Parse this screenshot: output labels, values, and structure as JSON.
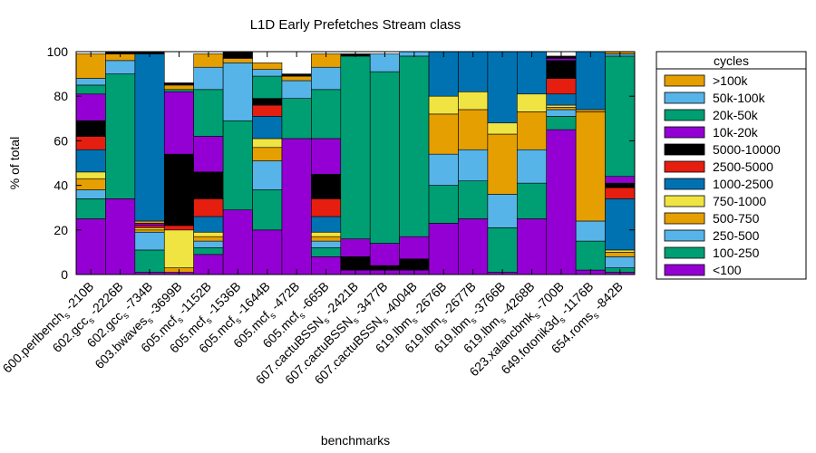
{
  "chart_data": {
    "type": "bar",
    "stacked": true,
    "title": "L1D Early Prefetches Stream class",
    "xlabel": "benchmarks",
    "ylabel": "% of total",
    "ylim": [
      0,
      100
    ],
    "yticks": [
      "0",
      "20",
      "40",
      "60",
      "80",
      "100"
    ],
    "legend_title": "cycles",
    "legend_position": "right",
    "categories": [
      {
        "base": "600.perlbench",
        "sub": "s",
        "tail": " -210B"
      },
      {
        "base": "602.gcc",
        "sub": "s",
        "tail": " -2226B"
      },
      {
        "base": "602.gcc",
        "sub": "s",
        "tail": " -734B"
      },
      {
        "base": "603.bwaves",
        "sub": "s",
        "tail": " -3699B"
      },
      {
        "base": "605.mcf",
        "sub": "s",
        "tail": " -1152B"
      },
      {
        "base": "605.mcf",
        "sub": "s",
        "tail": " -1536B"
      },
      {
        "base": "605.mcf",
        "sub": "s",
        "tail": " -1644B"
      },
      {
        "base": "605.mcf",
        "sub": "s",
        "tail": " -472B"
      },
      {
        "base": "605.mcf",
        "sub": "s",
        "tail": " -665B"
      },
      {
        "base": "607.cactuBSSN",
        "sub": "s",
        "tail": " -2421B"
      },
      {
        "base": "607.cactuBSSN",
        "sub": "s",
        "tail": " -3477B"
      },
      {
        "base": "607.cactuBSSN",
        "sub": "s",
        "tail": " -4004B"
      },
      {
        "base": "619.lbm",
        "sub": "s",
        "tail": " -2676B"
      },
      {
        "base": "619.lbm",
        "sub": "s",
        "tail": " -2677B"
      },
      {
        "base": "619.lbm",
        "sub": "s",
        "tail": " -3766B"
      },
      {
        "base": "619.lbm",
        "sub": "s",
        "tail": " -4268B"
      },
      {
        "base": "623.xalancbmk",
        "sub": "s",
        "tail": " -700B"
      },
      {
        "base": "649.fotonik3d",
        "sub": "s",
        "tail": " -1176B"
      },
      {
        "base": "654.roms",
        "sub": "s",
        "tail": " -842B"
      }
    ],
    "series": [
      {
        "name": "<100",
        "color": "#9400d3",
        "values": [
          25,
          34,
          1,
          1,
          9,
          29,
          20,
          61,
          8,
          2,
          2,
          2,
          23,
          25,
          1,
          25,
          65,
          2,
          1
        ]
      },
      {
        "name": "100-250",
        "color": "#009e73",
        "values": [
          9,
          0,
          10,
          0,
          3,
          0,
          18,
          0,
          4,
          0,
          0,
          0,
          17,
          17,
          20,
          16,
          6,
          13,
          2
        ]
      },
      {
        "name": "250-500",
        "color": "#56b4e9",
        "values": [
          4,
          0,
          8,
          0,
          3,
          0,
          13,
          0,
          3,
          0,
          0,
          0,
          14,
          14,
          15,
          15,
          3,
          9,
          5
        ]
      },
      {
        "name": "500-750",
        "color": "#e69f00",
        "values": [
          5,
          0,
          1,
          2,
          2,
          0,
          6,
          0,
          2,
          0,
          0,
          0,
          18,
          18,
          27,
          17,
          1,
          49,
          2
        ]
      },
      {
        "name": "750-1000",
        "color": "#f0e442",
        "values": [
          3,
          0,
          1,
          17,
          2,
          0,
          4,
          0,
          2,
          0,
          0,
          0,
          8,
          8,
          5,
          8,
          1,
          0,
          1
        ]
      },
      {
        "name": "1000-2500",
        "color": "#0072b2",
        "values": [
          10,
          0,
          0,
          0,
          7,
          0,
          10,
          0,
          7,
          0,
          0,
          0,
          0,
          0,
          0,
          0,
          5,
          0,
          23
        ]
      },
      {
        "name": "2500-5000",
        "color": "#e51e10",
        "values": [
          6,
          0,
          1,
          2,
          8,
          0,
          5,
          0,
          8,
          0,
          0,
          0,
          0,
          0,
          0,
          0,
          7,
          0,
          5
        ]
      },
      {
        "name": "5000-10000",
        "color": "#000000",
        "values": [
          7,
          0,
          0,
          32,
          12,
          0,
          3,
          0,
          11,
          6,
          2,
          5,
          0,
          0,
          0,
          0,
          8,
          0,
          2
        ]
      },
      {
        "name": "10k-20k",
        "color": "#9400d3",
        "values": [
          12,
          0,
          1,
          28,
          16,
          0,
          0,
          0,
          16,
          8,
          10,
          10,
          0,
          0,
          0,
          0,
          1,
          0,
          3
        ]
      },
      {
        "name": "20k-50k",
        "color": "#009e73",
        "values": [
          4,
          56,
          0,
          1,
          21,
          40,
          10,
          18,
          22,
          82,
          77,
          81,
          0,
          0,
          0,
          0,
          0,
          0,
          54
        ]
      },
      {
        "name": "50k-100k",
        "color": "#56b4e9",
        "values": [
          3,
          6,
          0,
          0,
          10,
          26,
          3,
          8,
          10,
          0,
          8,
          2,
          0,
          0,
          0,
          0,
          0,
          0,
          1
        ]
      },
      {
        "name": ">100k",
        "color": "#e69f00",
        "values": [
          11,
          3,
          1,
          2,
          6,
          2,
          3,
          2,
          6,
          0,
          0,
          0,
          0,
          0,
          0,
          0,
          0,
          1,
          0
        ]
      },
      {
        "name": "1000-2500",
        "color": "#0072b2",
        "values": [
          0,
          0,
          75,
          0,
          0,
          0,
          0,
          0,
          0,
          0,
          0,
          0,
          20,
          18,
          32,
          19,
          0,
          26,
          0
        ]
      },
      {
        "name": "5000-10000",
        "color": "#000000",
        "values": [
          0,
          1,
          1,
          1,
          0,
          3,
          0,
          1,
          0,
          1,
          0,
          0,
          0,
          0,
          0,
          0,
          1,
          0,
          0
        ]
      },
      {
        "name": "500-750",
        "color": "#e69f00",
        "values": [
          0,
          0,
          0,
          0,
          0,
          0,
          0,
          0,
          0,
          0,
          0,
          0,
          0,
          0,
          0,
          0,
          0,
          0,
          1
        ]
      }
    ],
    "legend": [
      {
        "label": ">100k",
        "color": "#e69f00"
      },
      {
        "label": "50k-100k",
        "color": "#56b4e9"
      },
      {
        "label": "20k-50k",
        "color": "#009e73"
      },
      {
        "label": "10k-20k",
        "color": "#9400d3"
      },
      {
        "label": "5000-10000",
        "color": "#000000"
      },
      {
        "label": "2500-5000",
        "color": "#e51e10"
      },
      {
        "label": "1000-2500",
        "color": "#0072b2"
      },
      {
        "label": "750-1000",
        "color": "#f0e442"
      },
      {
        "label": "500-750",
        "color": "#e69f00"
      },
      {
        "label": "250-500",
        "color": "#56b4e9"
      },
      {
        "label": "100-250",
        "color": "#009e73"
      },
      {
        "label": "<100",
        "color": "#9400d3"
      }
    ]
  }
}
